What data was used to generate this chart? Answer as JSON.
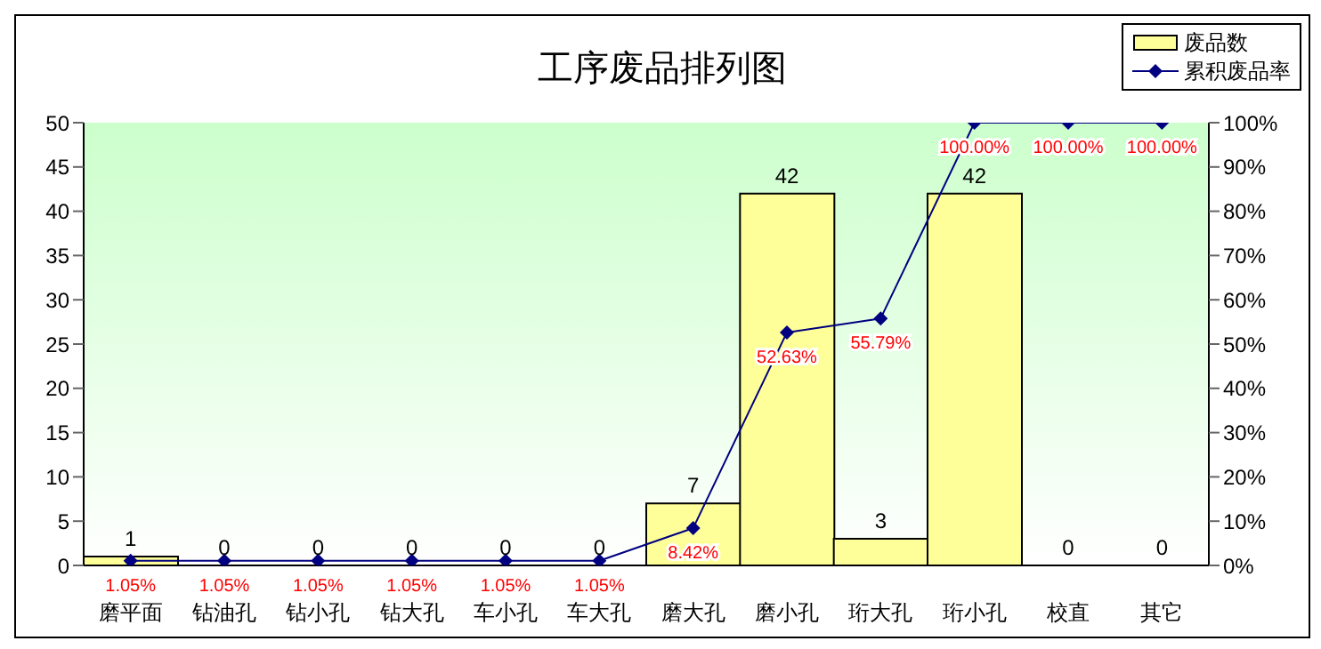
{
  "chart_data": {
    "type": "bar",
    "title": "工序废品排列图",
    "categories": [
      "磨平面",
      "钻油孔",
      "钻小孔",
      "钻大孔",
      "车小孔",
      "车大孔",
      "磨大孔",
      "磨小孔",
      "珩大孔",
      "珩小孔",
      "校直",
      "其它"
    ],
    "series": [
      {
        "name": "废品数",
        "color": "#ffff99",
        "values": [
          1,
          0,
          0,
          0,
          0,
          0,
          7,
          42,
          3,
          42,
          0,
          0
        ],
        "value_labels": [
          "1",
          "0",
          "0",
          "0",
          "0",
          "0",
          "7",
          "42",
          "3",
          "42",
          "0",
          "0"
        ]
      },
      {
        "name": "累积废品率",
        "type": "line",
        "axis": "y2",
        "color": "#000080",
        "marker": "diamond",
        "values": [
          1.05,
          1.05,
          1.05,
          1.05,
          1.05,
          1.05,
          8.42,
          52.63,
          55.79,
          100,
          100,
          100
        ],
        "value_labels": [
          "1.05%",
          "1.05%",
          "1.05%",
          "1.05%",
          "1.05%",
          "1.05%",
          "8.42%",
          "52.63%",
          "55.79%",
          "100.00%",
          "100.00%",
          "100.00%"
        ]
      }
    ],
    "ylim": [
      0,
      50
    ],
    "yticks": [
      0,
      5,
      10,
      15,
      20,
      25,
      30,
      35,
      40,
      45,
      50
    ],
    "y2lim": [
      0,
      100
    ],
    "y2ticks": [
      {
        "value": 0,
        "label": "0%"
      },
      {
        "value": 10,
        "label": "10%"
      },
      {
        "value": 20,
        "label": "20%"
      },
      {
        "value": 30,
        "label": "30%"
      },
      {
        "value": 40,
        "label": "40%"
      },
      {
        "value": 50,
        "label": "50%"
      },
      {
        "value": 60,
        "label": "60%"
      },
      {
        "value": 70,
        "label": "70%"
      },
      {
        "value": 80,
        "label": "80%"
      },
      {
        "value": 90,
        "label": "90%"
      },
      {
        "value": 100,
        "label": "100%"
      }
    ],
    "grid": false,
    "legend": "top right"
  }
}
